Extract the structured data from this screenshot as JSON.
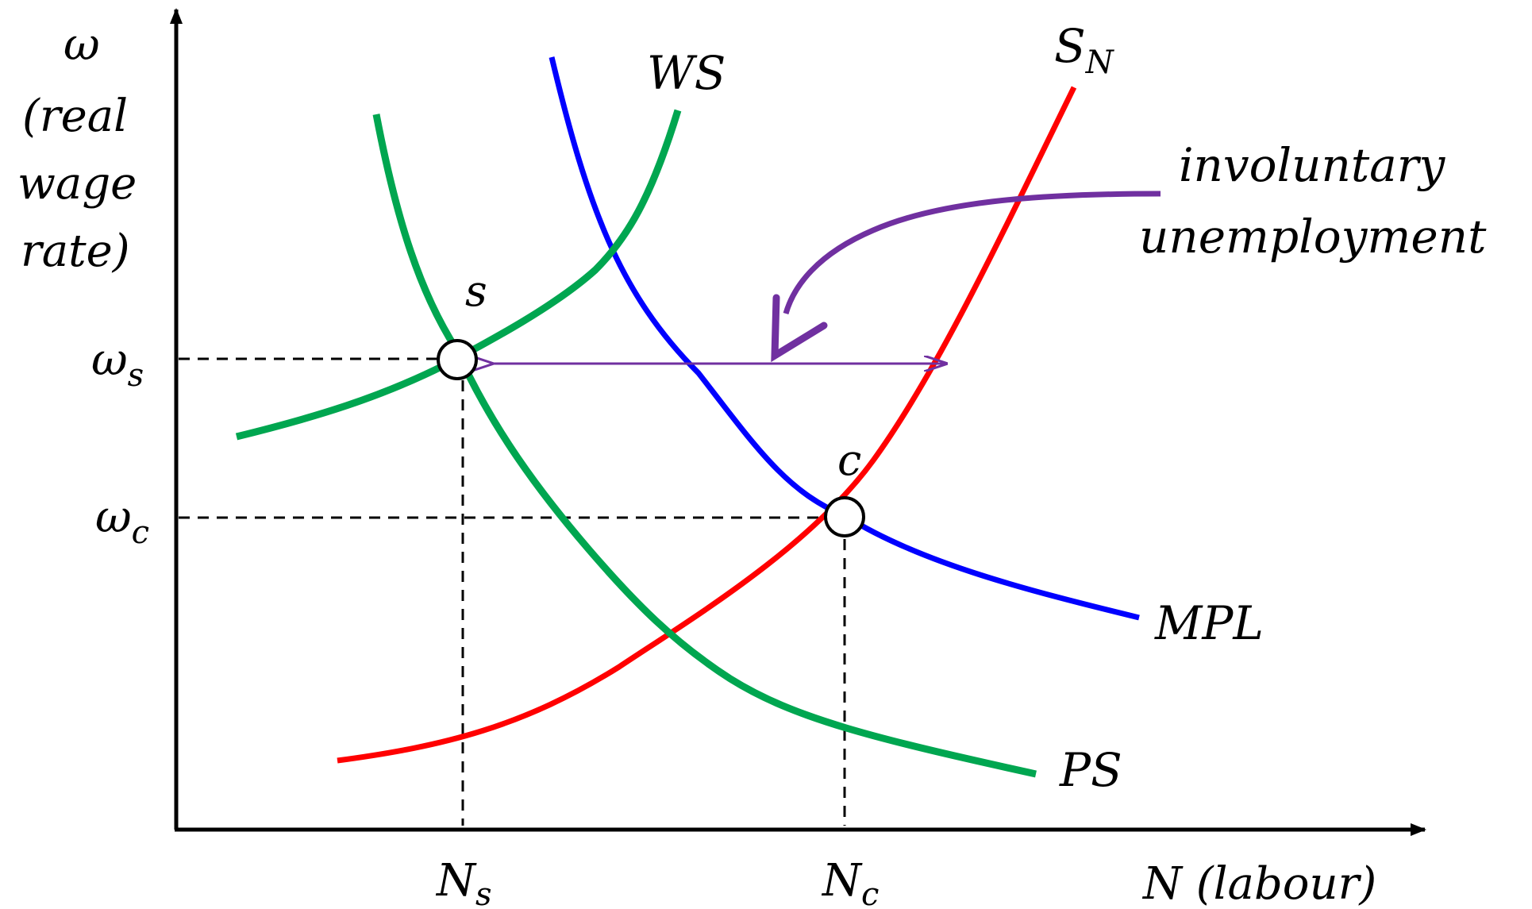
{
  "colors": {
    "ps": "#00a650",
    "ws": "#00a650",
    "mpl": "#0000ff",
    "sn": "#ff0000",
    "annotation": "#7030a0",
    "axis": "#000000",
    "dashed": "#000000"
  },
  "y_axis": {
    "symbol": "ω",
    "line1": "(real",
    "line2": "wage",
    "line3": "rate)"
  },
  "x_axis": {
    "label": "N (labour)"
  },
  "curves": {
    "ws": "WS",
    "ps": "PS",
    "mpl": "MPL",
    "sn_main": "S",
    "sn_sub": "N"
  },
  "points": {
    "s": "s",
    "c": "c"
  },
  "ticks": {
    "ws_main": "ω",
    "ws_sub": "s",
    "wc_main": "ω",
    "wc_sub": "c",
    "ns_main": "N",
    "ns_sub": "s",
    "nc_main": "N",
    "nc_sub": "c"
  },
  "annotation": {
    "line1": "involuntary",
    "line2": "unemployment"
  }
}
